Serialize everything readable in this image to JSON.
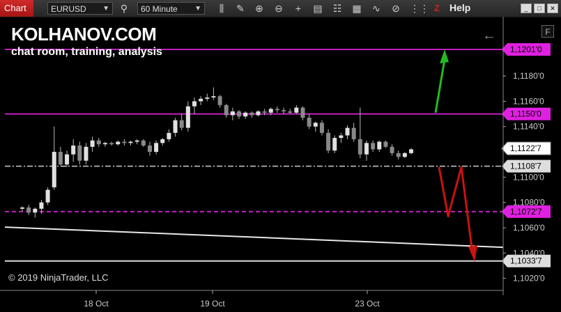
{
  "toolbar": {
    "tab_label": "Chart",
    "instrument": "EURUSD",
    "interval": "60 Minute",
    "help_label": "Help",
    "z_label": "Z",
    "icons": [
      "search-icon",
      "bar-type-icon",
      "pencil-icon",
      "zoom-in-icon",
      "zoom-out-icon",
      "crosshair-icon",
      "layout-icon",
      "properties-icon",
      "strategy-icon",
      "wave-icon",
      "ruler-icon",
      "grid-icon",
      "minimize-icon",
      "maximize-icon",
      "close-icon"
    ]
  },
  "overlay": {
    "brand": "KOLHANOV.COM",
    "subtitle": "chat room, training, analysis",
    "copyright": "© 2019 NinjaTrader, LLC",
    "f_button": "F"
  },
  "colors": {
    "magenta": "#c020c0",
    "green_arrow": "#22bb22",
    "red_arrow": "#cc1111",
    "candle_up": "#e0e0e0",
    "candle_down": "#888888"
  },
  "chart_data": {
    "type": "candlestick",
    "x_ticks": [
      "18 Oct",
      "19 Oct",
      "23 Oct"
    ],
    "y_ticks": [
      "1,1180'0",
      "1,1160'0",
      "1,1140'0",
      "1,1100'0",
      "1,1080'0",
      "1,1060'0",
      "1,1040'0",
      "1,1020'0"
    ],
    "y_range": [
      1.101,
      1.122
    ],
    "price_levels": [
      {
        "label": "1,1201'0",
        "value": 1.1201,
        "style": "solid",
        "color": "#c020c0"
      },
      {
        "label": "1,1150'0",
        "value": 1.115,
        "style": "solid",
        "color": "#c020c0"
      },
      {
        "label": "1,1122'7",
        "value": 1.11227,
        "style": "current",
        "color": "#ffffff"
      },
      {
        "label": "1,1108'7",
        "value": 1.11087,
        "style": "dashdot",
        "color": "#cccccc"
      },
      {
        "label": "1,1072'7",
        "value": 1.10727,
        "style": "dashed",
        "color": "#c020c0"
      },
      {
        "label": "1,1033'7",
        "value": 1.10337,
        "style": "solid",
        "color": "#dddddd"
      }
    ],
    "candles": [
      [
        1.1075,
        1.1077,
        1.1073,
        1.1076
      ],
      [
        1.1076,
        1.1078,
        1.107,
        1.1072
      ],
      [
        1.1072,
        1.1076,
        1.1068,
        1.1075
      ],
      [
        1.1075,
        1.1082,
        1.1071,
        1.108
      ],
      [
        1.108,
        1.1092,
        1.1078,
        1.109
      ],
      [
        1.1092,
        1.114,
        1.109,
        1.112
      ],
      [
        1.112,
        1.1124,
        1.1109,
        1.111
      ],
      [
        1.111,
        1.1121,
        1.1108,
        1.1118
      ],
      [
        1.1118,
        1.113,
        1.1112,
        1.1125
      ],
      [
        1.1125,
        1.1128,
        1.111,
        1.1113
      ],
      [
        1.1113,
        1.1127,
        1.111,
        1.1124
      ],
      [
        1.1124,
        1.1132,
        1.112,
        1.1129
      ],
      [
        1.1129,
        1.1131,
        1.1124,
        1.1126
      ],
      [
        1.1126,
        1.1128,
        1.1124,
        1.1127
      ],
      [
        1.1127,
        1.1128,
        1.1125,
        1.1126
      ],
      [
        1.1126,
        1.1129,
        1.1125,
        1.1128
      ],
      [
        1.1128,
        1.113,
        1.1125,
        1.1127
      ],
      [
        1.1127,
        1.1129,
        1.1125,
        1.1128
      ],
      [
        1.1128,
        1.113,
        1.1126,
        1.1129
      ],
      [
        1.1129,
        1.113,
        1.1124,
        1.1125
      ],
      [
        1.1125,
        1.1128,
        1.1117,
        1.112
      ],
      [
        1.112,
        1.1129,
        1.1118,
        1.1127
      ],
      [
        1.1127,
        1.1131,
        1.1125,
        1.113
      ],
      [
        1.113,
        1.1138,
        1.1128,
        1.1135
      ],
      [
        1.1135,
        1.1147,
        1.1132,
        1.1145
      ],
      [
        1.1145,
        1.115,
        1.1137,
        1.1139
      ],
      [
        1.1139,
        1.116,
        1.1136,
        1.1156
      ],
      [
        1.1156,
        1.1163,
        1.115,
        1.116
      ],
      [
        1.116,
        1.1164,
        1.1157,
        1.1162
      ],
      [
        1.1162,
        1.1166,
        1.116,
        1.1163
      ],
      [
        1.1163,
        1.1171,
        1.1161,
        1.1164
      ],
      [
        1.1164,
        1.1165,
        1.1155,
        1.1157
      ],
      [
        1.1157,
        1.1158,
        1.1147,
        1.1149
      ],
      [
        1.1149,
        1.1155,
        1.1145,
        1.1152
      ],
      [
        1.1152,
        1.1153,
        1.1146,
        1.1148
      ],
      [
        1.1148,
        1.1152,
        1.1146,
        1.1151
      ],
      [
        1.1151,
        1.1152,
        1.1147,
        1.1149
      ],
      [
        1.1149,
        1.1153,
        1.1148,
        1.1152
      ],
      [
        1.1152,
        1.1154,
        1.1149,
        1.1151
      ],
      [
        1.1151,
        1.1155,
        1.1149,
        1.1154
      ],
      [
        1.1154,
        1.1156,
        1.1151,
        1.1153
      ],
      [
        1.1153,
        1.1155,
        1.115,
        1.1152
      ],
      [
        1.1152,
        1.1154,
        1.115,
        1.1151
      ],
      [
        1.1151,
        1.1157,
        1.115,
        1.1155
      ],
      [
        1.1155,
        1.1156,
        1.1145,
        1.1147
      ],
      [
        1.1147,
        1.115,
        1.1138,
        1.114
      ],
      [
        1.114,
        1.1144,
        1.1136,
        1.1143
      ],
      [
        1.1143,
        1.1145,
        1.1133,
        1.1135
      ],
      [
        1.1135,
        1.1138,
        1.1119,
        1.1121
      ],
      [
        1.1121,
        1.1133,
        1.1119,
        1.1131
      ],
      [
        1.1131,
        1.1135,
        1.1127,
        1.1133
      ],
      [
        1.1133,
        1.1141,
        1.113,
        1.1139
      ],
      [
        1.1139,
        1.1143,
        1.1128,
        1.113
      ],
      [
        1.113,
        1.1155,
        1.1115,
        1.1118
      ],
      [
        1.1118,
        1.1129,
        1.1113,
        1.1127
      ],
      [
        1.1127,
        1.1129,
        1.112,
        1.1122
      ],
      [
        1.1122,
        1.1129,
        1.112,
        1.1128
      ],
      [
        1.1128,
        1.1129,
        1.1123,
        1.1124
      ],
      [
        1.1124,
        1.1126,
        1.1117,
        1.1119
      ],
      [
        1.1119,
        1.1121,
        1.1114,
        1.1116
      ],
      [
        1.1116,
        1.112,
        1.1115,
        1.1119
      ],
      [
        1.1119,
        1.1123,
        1.1118,
        1.1122
      ]
    ]
  }
}
